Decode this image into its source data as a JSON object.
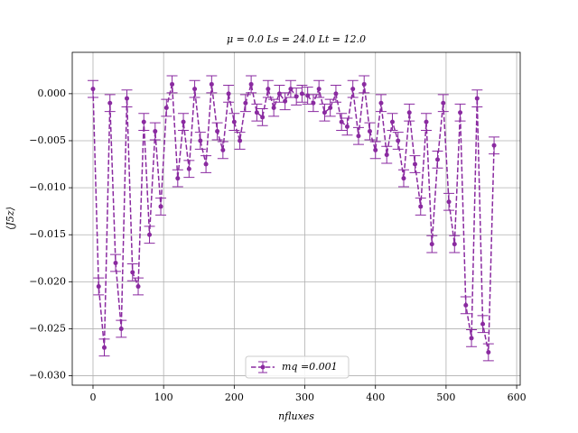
{
  "chart_data": {
    "type": "errorbar",
    "title": "μ = 0.0 Ls = 24.0 Lt = 12.0",
    "xlabel": "nfluxes",
    "ylabel": "⟨J5z⟩",
    "xlim": [
      -29.4,
      605
    ],
    "ylim": [
      -0.031,
      0.0044
    ],
    "xticks": [
      0,
      100,
      200,
      300,
      400,
      500,
      600
    ],
    "yticks": [
      {
        "value": 0,
        "label": "0.000"
      },
      {
        "value": -0.005,
        "label": "−0.005"
      },
      {
        "value": -0.01,
        "label": "−0.010"
      },
      {
        "value": -0.015,
        "label": "−0.015"
      },
      {
        "value": -0.02,
        "label": "−0.020"
      },
      {
        "value": -0.025,
        "label": "−0.025"
      },
      {
        "value": -0.03,
        "label": "−0.030"
      }
    ],
    "grid": true,
    "legend": "lower center",
    "x": [
      0,
      8,
      16,
      24,
      32,
      40,
      48,
      56,
      64,
      72,
      80,
      88,
      96,
      104,
      112,
      120,
      128,
      136,
      144,
      152,
      160,
      168,
      176,
      184,
      192,
      200,
      208,
      216,
      224,
      232,
      240,
      248,
      256,
      264,
      272,
      280,
      288,
      296,
      304,
      312,
      320,
      328,
      336,
      344,
      352,
      360,
      368,
      376,
      384,
      392,
      400,
      408,
      416,
      424,
      432,
      440,
      448,
      456,
      464,
      472,
      480,
      488,
      496,
      504,
      512,
      520,
      528,
      536,
      544,
      552,
      560,
      568
    ],
    "series": [
      {
        "name": "mq =0.001",
        "color": "#8a2aa0",
        "yerr": 0.0009,
        "values": [
          0.0005,
          -0.0205,
          -0.027,
          -0.001,
          -0.018,
          -0.025,
          -0.0005,
          -0.019,
          -0.0205,
          -0.003,
          -0.015,
          -0.004,
          -0.012,
          -0.0015,
          0.001,
          -0.009,
          -0.003,
          -0.008,
          0.0005,
          -0.005,
          -0.0075,
          0.001,
          -0.004,
          -0.006,
          0.0,
          -0.003,
          -0.005,
          -0.001,
          0.001,
          -0.002,
          -0.0025,
          0.0005,
          -0.0015,
          0.0,
          -0.0008,
          0.0005,
          -0.0003,
          0.0,
          -0.0002,
          -0.001,
          0.0005,
          -0.002,
          -0.0015,
          0.0,
          -0.003,
          -0.0035,
          0.0005,
          -0.0045,
          0.001,
          -0.004,
          -0.006,
          -0.001,
          -0.0065,
          -0.003,
          -0.005,
          -0.009,
          -0.002,
          -0.0075,
          -0.012,
          -0.003,
          -0.016,
          -0.007,
          -0.001,
          -0.0115,
          -0.016,
          -0.002,
          -0.0225,
          -0.026,
          -0.0005,
          -0.0245,
          -0.0275,
          -0.0055
        ]
      }
    ]
  }
}
